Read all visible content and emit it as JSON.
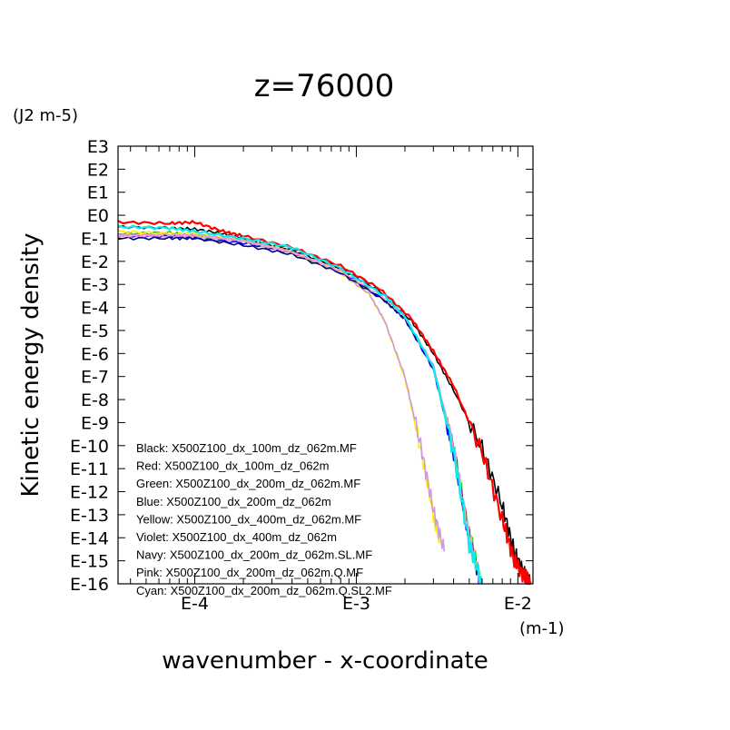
{
  "chart_data": {
    "type": "line",
    "title": "z=76000",
    "ylabel": "Kinetic energy density",
    "yunit": "(J2 m-5)",
    "xlabel": "wavenumber - x-coordinate",
    "xunit": "(m-1)",
    "xscale": "log",
    "yscale": "log",
    "xlim": [
      3.35e-05,
      0.0124
    ],
    "ylim_exp": [
      -16,
      3
    ],
    "grid": false,
    "legend_placement": "bottom-left",
    "xticks": [
      {
        "label": "E-4",
        "value": 0.0001
      },
      {
        "label": "E-3",
        "value": 0.001
      },
      {
        "label": "E-2",
        "value": 0.01
      }
    ],
    "yticks": [
      {
        "label": "E3",
        "exp": 3
      },
      {
        "label": "E2",
        "exp": 2
      },
      {
        "label": "E1",
        "exp": 1
      },
      {
        "label": "E0",
        "exp": 0
      },
      {
        "label": "E-1",
        "exp": -1
      },
      {
        "label": "E-2",
        "exp": -2
      },
      {
        "label": "E-3",
        "exp": -3
      },
      {
        "label": "E-4",
        "exp": -4
      },
      {
        "label": "E-5",
        "exp": -5
      },
      {
        "label": "E-6",
        "exp": -6
      },
      {
        "label": "E-7",
        "exp": -7
      },
      {
        "label": "E-8",
        "exp": -8
      },
      {
        "label": "E-9",
        "exp": -9
      },
      {
        "label": "E-10",
        "exp": -10
      },
      {
        "label": "E-11",
        "exp": -11
      },
      {
        "label": "E-12",
        "exp": -12
      },
      {
        "label": "E-13",
        "exp": -13
      },
      {
        "label": "E-14",
        "exp": -14
      },
      {
        "label": "E-15",
        "exp": -15
      },
      {
        "label": "E-16",
        "exp": -16
      }
    ],
    "series": [
      {
        "name": "Black: X500Z100_dx_100m_dz_062m.MF",
        "color": "#000000",
        "x": [
          3.35e-05,
          7e-05,
          0.0001,
          0.00015,
          0.0002,
          0.0004,
          0.0008,
          0.0014,
          0.0022,
          0.003,
          0.004,
          0.006,
          0.008,
          0.0095,
          0.011,
          0.012
        ],
        "y": [
          -0.5,
          -0.55,
          -0.6,
          -0.8,
          -1.0,
          -1.5,
          -2.3,
          -3.3,
          -4.6,
          -6.0,
          -7.6,
          -10.1,
          -12.6,
          -14.6,
          -15.6,
          -16.0
        ]
      },
      {
        "name": "Red: X500Z100_dx_100m_dz_062m",
        "color": "#ff0000",
        "x": [
          3.35e-05,
          7e-05,
          0.0001,
          0.00015,
          0.0002,
          0.0004,
          0.0008,
          0.0014,
          0.0022,
          0.003,
          0.004,
          0.006,
          0.008,
          0.0095,
          0.011,
          0.012
        ],
        "y": [
          -0.3,
          -0.35,
          -0.3,
          -0.7,
          -0.9,
          -1.4,
          -2.2,
          -3.2,
          -4.5,
          -5.9,
          -7.4,
          -10.3,
          -13.2,
          -15.0,
          -15.7,
          -15.9
        ]
      },
      {
        "name": "Green: X500Z100_dx_200m_dz_062m.MF",
        "color": "#00dd00",
        "x": [
          3.35e-05,
          7e-05,
          0.0001,
          0.0002,
          0.0004,
          0.0008,
          0.0015,
          0.002,
          0.003,
          0.004,
          0.005,
          0.0058
        ],
        "y": [
          -0.8,
          -0.75,
          -0.9,
          -1.1,
          -1.6,
          -2.5,
          -3.7,
          -4.5,
          -6.6,
          -10.1,
          -13.8,
          -15.6
        ]
      },
      {
        "name": "Blue: X500Z100_dx_200m_dz_062m",
        "color": "#0000ff",
        "x": [
          3.35e-05,
          7e-05,
          0.0001,
          0.0002,
          0.0004,
          0.0008,
          0.0015,
          0.002,
          0.003,
          0.004,
          0.005,
          0.0058
        ],
        "y": [
          -0.9,
          -0.9,
          -1.0,
          -1.2,
          -1.6,
          -2.4,
          -3.7,
          -4.5,
          -6.7,
          -10.3,
          -14.1,
          -15.8
        ]
      },
      {
        "name": "Yellow: X500Z100_dx_400m_dz_062m.MF",
        "color": "#ffee00",
        "x": [
          3.35e-05,
          7e-05,
          0.0001,
          0.0002,
          0.0004,
          0.0008,
          0.0012,
          0.0015,
          0.002,
          0.0025,
          0.003,
          0.0033
        ],
        "y": [
          -0.7,
          -0.8,
          -0.8,
          -1.1,
          -1.6,
          -2.5,
          -3.4,
          -4.6,
          -7.1,
          -10.1,
          -13.0,
          -14.2
        ]
      },
      {
        "name": "Violet: X500Z100_dx_400m_dz_062m",
        "color": "#cc99dd",
        "x": [
          3.35e-05,
          7e-05,
          0.0001,
          0.0002,
          0.0004,
          0.0008,
          0.0012,
          0.0015,
          0.002,
          0.0025,
          0.003,
          0.0035
        ],
        "y": [
          -0.85,
          -0.9,
          -0.85,
          -1.1,
          -1.6,
          -2.5,
          -3.4,
          -4.6,
          -7.0,
          -10.0,
          -12.8,
          -14.6
        ]
      },
      {
        "name": "Navy: X500Z100_dx_200m_dz_062m.SL.MF",
        "color": "#000080",
        "x": [
          3.35e-05,
          7e-05,
          0.0001,
          0.0002,
          0.0004,
          0.0008,
          0.0015,
          0.002,
          0.003,
          0.004,
          0.005,
          0.0058
        ],
        "y": [
          -1.0,
          -1.0,
          -1.0,
          -1.3,
          -1.7,
          -2.5,
          -3.7,
          -4.5,
          -6.6,
          -10.2,
          -14.0,
          -15.8
        ]
      },
      {
        "name": "Pink: X500Z100_dx_200m_dz_062m.Q.MF",
        "color": "#ff99cc",
        "x": [
          3.35e-05,
          7e-05,
          0.0001,
          0.0002,
          0.0004,
          0.0008,
          0.0015,
          0.002,
          0.003,
          0.004,
          0.005,
          0.0058
        ],
        "y": [
          -0.9,
          -0.85,
          -0.9,
          -1.1,
          -1.6,
          -2.4,
          -3.6,
          -4.4,
          -6.5,
          -10.0,
          -13.9,
          -15.7
        ]
      },
      {
        "name": "Cyan: X500Z100_dx_200m_dz_062m.Q.SL2.MF",
        "color": "#00eeee",
        "x": [
          3.35e-05,
          7e-05,
          0.0001,
          0.0002,
          0.0004,
          0.0008,
          0.0015,
          0.002,
          0.003,
          0.004,
          0.005,
          0.006
        ],
        "y": [
          -0.5,
          -0.55,
          -0.7,
          -1.0,
          -1.4,
          -2.3,
          -3.5,
          -4.4,
          -6.6,
          -10.3,
          -14.3,
          -16.0
        ]
      }
    ]
  }
}
